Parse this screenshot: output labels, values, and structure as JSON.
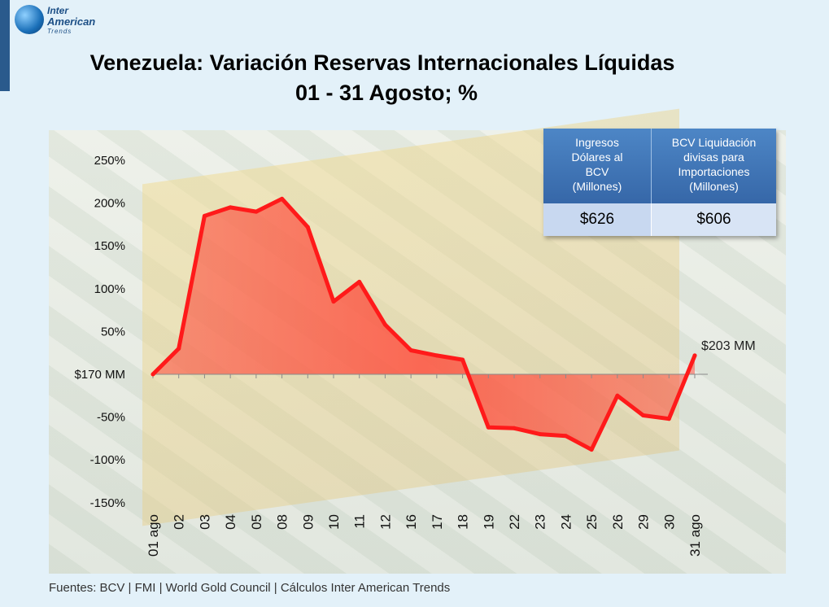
{
  "logo": {
    "line1": "Inter",
    "line2": "American",
    "line3": "Trends"
  },
  "title_line1": "Venezuela: Variación Reservas Internacionales Líquidas",
  "title_line2": "01 - 31 Agosto; %",
  "table": {
    "col1_header": [
      "Ingresos",
      "Dólares al",
      "BCV",
      "(Millones)"
    ],
    "col2_header": [
      "BCV Liquidación",
      "divisas para",
      "Importaciones",
      "(Millones)"
    ],
    "col1_value": "$626",
    "col2_value": "$606"
  },
  "source": "Fuentes: BCV | FMI | World Gold Council  | Cálculos Inter American Trends",
  "chart_data": {
    "type": "area",
    "categories": [
      "01 ago",
      "02",
      "03",
      "04",
      "05",
      "08",
      "09",
      "10",
      "11",
      "12",
      "16",
      "17",
      "18",
      "19",
      "22",
      "23",
      "24",
      "25",
      "26",
      "29",
      "30",
      "31 ago"
    ],
    "values": [
      0,
      30,
      185,
      195,
      190,
      205,
      172,
      85,
      108,
      58,
      28,
      22,
      17,
      -62,
      -63,
      -70,
      -72,
      -88,
      -25,
      -48,
      -52,
      22
    ],
    "yticks": [
      250,
      200,
      150,
      100,
      50,
      0,
      -50,
      -100,
      -150
    ],
    "ytick_labels": [
      "250%",
      "200%",
      "150%",
      "100%",
      "50%",
      "$170 MM",
      "-50%",
      "-100%",
      "-150%"
    ],
    "ylim": [
      -170,
      270
    ],
    "end_label": "$203 MM",
    "grid": false,
    "line_color": "#ff1a1a",
    "fill_color": "#ff4a3a"
  }
}
